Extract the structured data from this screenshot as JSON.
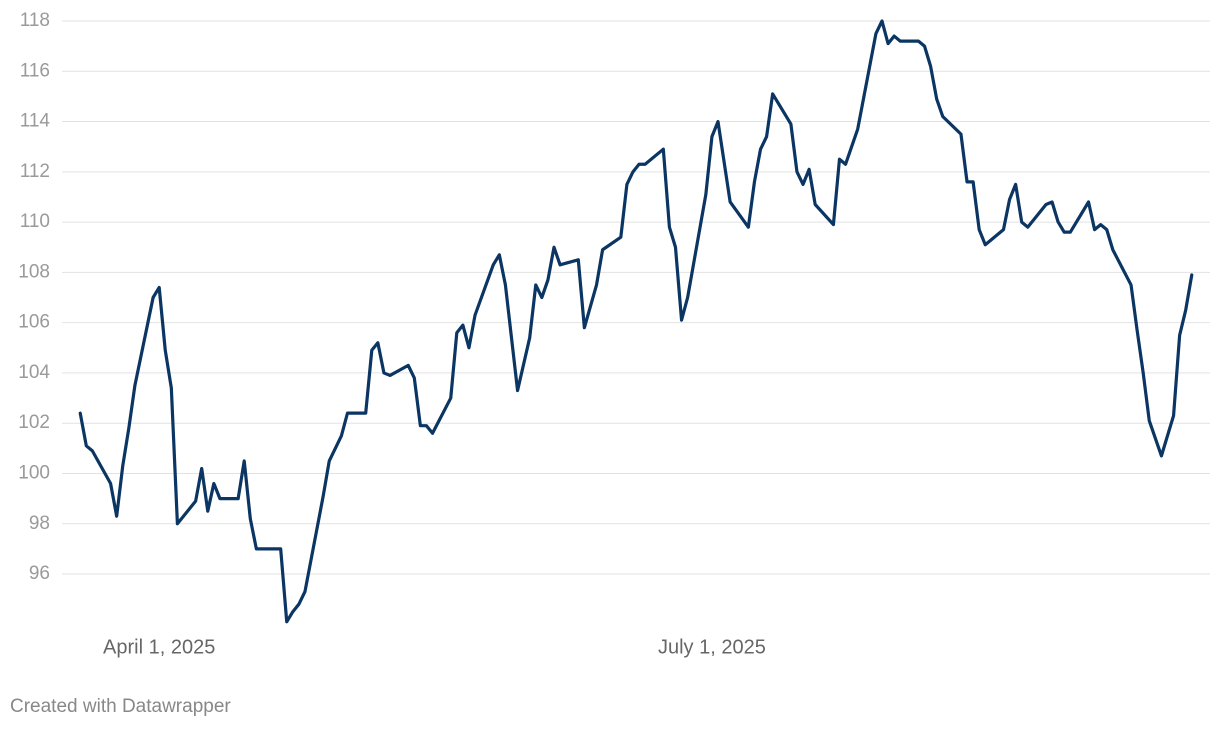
{
  "chart_data": {
    "type": "line",
    "footer": "Created with Datawrapper",
    "color": "#0b3563",
    "grid": true,
    "x": [
      "2025-03-19",
      "2025-03-20",
      "2025-03-21",
      "2025-03-24",
      "2025-03-25",
      "2025-03-26",
      "2025-03-27",
      "2025-03-28",
      "2025-03-31",
      "2025-04-01",
      "2025-04-02",
      "2025-04-03",
      "2025-04-04",
      "2025-04-07",
      "2025-04-08",
      "2025-04-09",
      "2025-04-10",
      "2025-04-11",
      "2025-04-14",
      "2025-04-15",
      "2025-04-16",
      "2025-04-17",
      "2025-04-21",
      "2025-04-22",
      "2025-04-23",
      "2025-04-24",
      "2025-04-25",
      "2025-04-28",
      "2025-04-29",
      "2025-05-01",
      "2025-05-02",
      "2025-05-05",
      "2025-05-06",
      "2025-05-07",
      "2025-05-08",
      "2025-05-09",
      "2025-05-12",
      "2025-05-13",
      "2025-05-14",
      "2025-05-15",
      "2025-05-16",
      "2025-05-19",
      "2025-05-20",
      "2025-05-21",
      "2025-05-22",
      "2025-05-23",
      "2025-05-26",
      "2025-05-27",
      "2025-05-28",
      "2025-05-30",
      "2025-06-01",
      "2025-06-02",
      "2025-06-03",
      "2025-06-04",
      "2025-06-05",
      "2025-06-06",
      "2025-06-09",
      "2025-06-10",
      "2025-06-12",
      "2025-06-13",
      "2025-06-16",
      "2025-06-17",
      "2025-06-18",
      "2025-06-19",
      "2025-06-20",
      "2025-06-23",
      "2025-06-24",
      "2025-06-25",
      "2025-06-26",
      "2025-06-27",
      "2025-06-30",
      "2025-07-01",
      "2025-07-02",
      "2025-07-03",
      "2025-07-04",
      "2025-07-07",
      "2025-07-08",
      "2025-07-09",
      "2025-07-10",
      "2025-07-11",
      "2025-07-14",
      "2025-07-15",
      "2025-07-16",
      "2025-07-17",
      "2025-07-18",
      "2025-07-21",
      "2025-07-22",
      "2025-07-23",
      "2025-07-24",
      "2025-07-25",
      "2025-07-28",
      "2025-07-29",
      "2025-07-30",
      "2025-07-31",
      "2025-08-01",
      "2025-08-04",
      "2025-08-05",
      "2025-08-06",
      "2025-08-07",
      "2025-08-08",
      "2025-08-11",
      "2025-08-12",
      "2025-08-13",
      "2025-08-14",
      "2025-08-15",
      "2025-08-18",
      "2025-08-19",
      "2025-08-20",
      "2025-08-21",
      "2025-08-22",
      "2025-08-25",
      "2025-08-26",
      "2025-08-27",
      "2025-08-28",
      "2025-08-29",
      "2025-09-01",
      "2025-09-02",
      "2025-09-03",
      "2025-09-04",
      "2025-09-05",
      "2025-09-08",
      "2025-09-09",
      "2025-09-10",
      "2025-09-11",
      "2025-09-13",
      "2025-09-15",
      "2025-09-16",
      "2025-09-17",
      "2025-09-18"
    ],
    "values": [
      102.4,
      101.1,
      100.9,
      99.6,
      98.3,
      100.3,
      101.8,
      103.5,
      107.0,
      107.4,
      104.9,
      103.4,
      98.0,
      98.9,
      100.2,
      98.5,
      99.6,
      99.0,
      99.0,
      100.5,
      98.2,
      97.0,
      97.0,
      94.1,
      94.5,
      94.8,
      95.3,
      99.1,
      100.5,
      101.5,
      102.4,
      102.4,
      104.9,
      105.2,
      104.0,
      103.9,
      104.3,
      103.8,
      101.9,
      101.9,
      101.6,
      103.0,
      105.6,
      105.9,
      105.0,
      106.3,
      108.3,
      108.7,
      107.5,
      103.3,
      105.4,
      107.5,
      107.0,
      107.7,
      109.0,
      108.3,
      108.5,
      105.8,
      107.5,
      108.9,
      109.4,
      111.5,
      112.0,
      112.3,
      112.3,
      112.9,
      109.8,
      109.0,
      106.1,
      107.0,
      111.1,
      113.4,
      114.0,
      112.4,
      110.8,
      109.8,
      111.6,
      112.9,
      113.4,
      115.1,
      113.9,
      112.0,
      111.5,
      112.1,
      110.7,
      109.9,
      112.5,
      112.3,
      113.0,
      113.7,
      117.5,
      118.0,
      117.1,
      117.4,
      117.2,
      117.2,
      117.0,
      116.2,
      114.9,
      114.2,
      113.5,
      111.6,
      111.6,
      109.7,
      109.1,
      109.7,
      110.9,
      111.5,
      110.0,
      109.8,
      110.7,
      110.8,
      110.0,
      109.6,
      109.6,
      110.8,
      109.7,
      109.9,
      109.7,
      108.9,
      107.5,
      105.7,
      104.0,
      102.1,
      100.7,
      102.3,
      105.5,
      106.5,
      107.9
    ],
    "xlim": [
      "2025-03-16",
      "2025-09-21"
    ],
    "xticks": [
      {
        "value": "2025-04-01",
        "label": "April 1, 2025"
      },
      {
        "value": "2025-07-01",
        "label": "July 1, 2025"
      }
    ],
    "ylim": [
      94,
      118
    ],
    "yticks": [
      96,
      98,
      100,
      102,
      104,
      106,
      108,
      110,
      112,
      114,
      116,
      118
    ]
  }
}
